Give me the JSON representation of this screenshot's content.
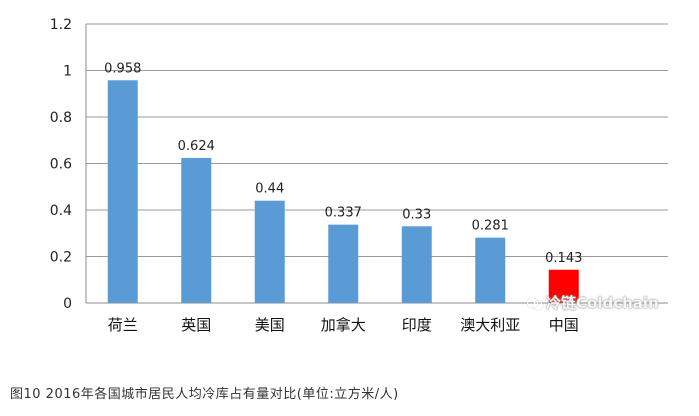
{
  "chart_data": {
    "type": "bar",
    "categories": [
      "荷兰",
      "英国",
      "美国",
      "加拿大",
      "印度",
      "澳大利亚",
      "中国"
    ],
    "values": [
      0.958,
      0.624,
      0.44,
      0.337,
      0.33,
      0.281,
      0.143
    ],
    "data_labels": [
      "0.958",
      "0.624",
      "0.44",
      "0.337",
      "0.33",
      "0.281",
      "0.143"
    ],
    "bar_colors": [
      "#5b9bd5",
      "#5b9bd5",
      "#5b9bd5",
      "#5b9bd5",
      "#5b9bd5",
      "#5b9bd5",
      "#ff0000"
    ],
    "ylim": [
      0,
      1.2
    ],
    "yticks": [
      "0",
      "0.2",
      "0.4",
      "0.6",
      "0.8",
      "1",
      "1.2"
    ],
    "grid": true,
    "legend": "none"
  },
  "caption": "图10 2016年各国城市居民人均冷库占有量对比(单位:立方米/人)",
  "watermark": "冷链Coldchain"
}
